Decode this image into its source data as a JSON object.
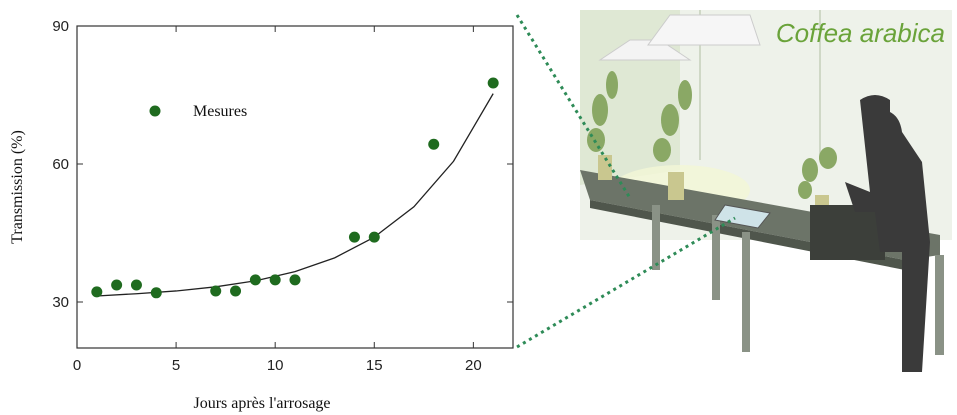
{
  "chart_data": {
    "type": "scatter",
    "xlabel": "Jours après l'arrosage",
    "ylabel": "Transmission (%)",
    "xlim": [
      0,
      22
    ],
    "ylim": [
      20,
      90
    ],
    "xticks": [
      0,
      5,
      10,
      15,
      20
    ],
    "yticks": [
      30,
      60,
      90
    ],
    "legend_position": "upper left",
    "series": [
      {
        "name": "Mesures",
        "color": "#1f6b1f",
        "x": [
          1,
          2,
          3,
          4,
          7,
          8,
          9,
          10,
          11,
          14,
          15,
          18,
          21
        ],
        "values": [
          32.2,
          33.7,
          33.7,
          32,
          32.4,
          32.4,
          34.8,
          34.8,
          34.8,
          44.1,
          44.1,
          64.3,
          77.6
        ]
      }
    ],
    "fit": {
      "color": "#222222",
      "x": [
        1,
        3,
        5,
        7,
        9,
        11,
        13,
        15,
        17,
        19,
        21
      ],
      "values": [
        31.3,
        31.8,
        32.4,
        33.3,
        34.6,
        36.6,
        39.6,
        44.1,
        50.7,
        60.6,
        75.3
      ]
    },
    "annotation": "Coffea arabica"
  }
}
